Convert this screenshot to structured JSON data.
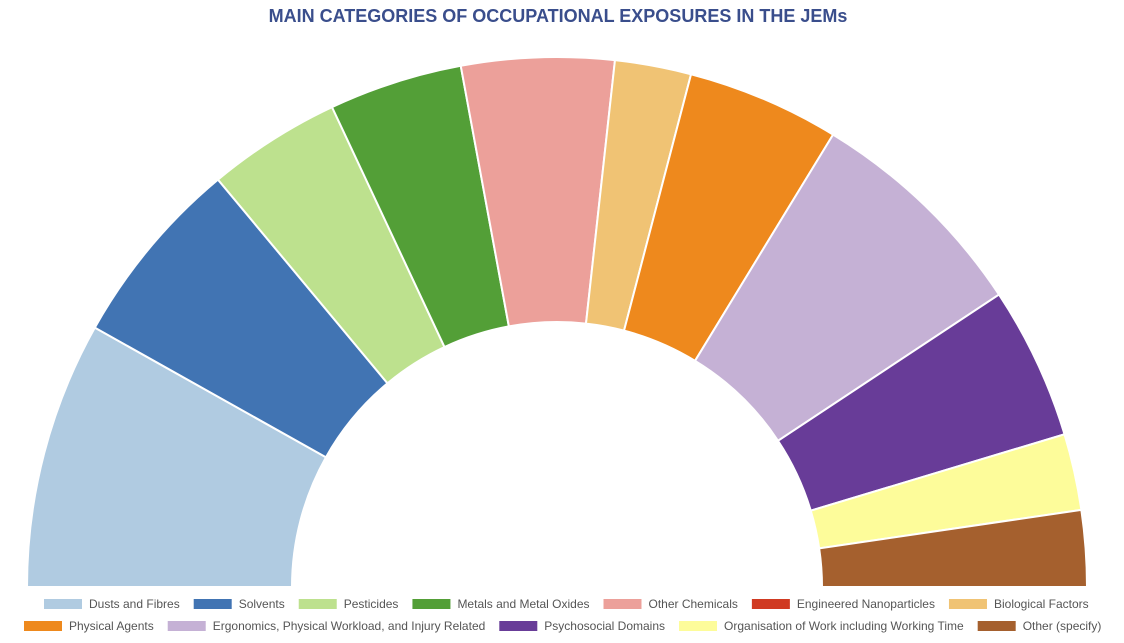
{
  "chart_data": {
    "type": "pie",
    "subtype": "semi-donut",
    "title": "MAIN CATEGORIES OF OCCUPATIONAL EXPOSURES IN THE JEMs",
    "legend_position": "bottom",
    "categories": [
      "Dusts and Fibres",
      "Solvents",
      "Pesticides",
      "Metals and Metal Oxides",
      "Other Chemicals",
      "Engineered Nanoparticles",
      "Biological Factors",
      "Physical Agents",
      "Ergonomics, Physical Workload, and Injury Related",
      "Psychosocial Domains",
      "Organisation of Work including Working Time",
      "Other (specify)"
    ],
    "values": [
      14,
      10,
      7,
      7,
      8,
      0,
      4,
      8,
      12,
      8,
      4,
      4
    ],
    "colors": [
      "#b0cbe1",
      "#4174b3",
      "#bde18e",
      "#539f37",
      "#eca09a",
      "#d03a22",
      "#f0c374",
      "#ee891d",
      "#c5b1d5",
      "#683c98",
      "#fdfc9a",
      "#a5602e"
    ]
  }
}
